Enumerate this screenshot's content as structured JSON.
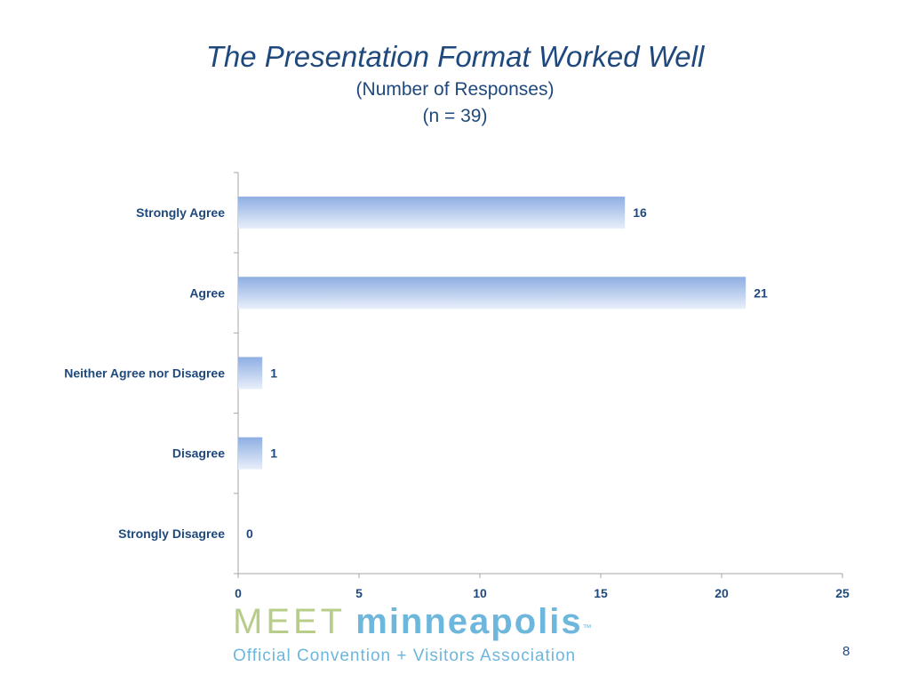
{
  "slide": {
    "page_number": "8"
  },
  "logo": {
    "word1": "MEET",
    "word2": "minneapolis",
    "trademark": "™",
    "tagline": "Official Convention + Visitors Association"
  },
  "colors": {
    "title": "#1f497d",
    "bar_dark": "#8eaee2",
    "bar_light": "#e9effa",
    "axis": "#a6a6a6"
  },
  "chart_data": {
    "type": "bar",
    "orientation": "horizontal",
    "title": "The Presentation Format Worked Well",
    "subtitle": "(Number of Responses)",
    "subtitle2": "(n = 39)",
    "categories": [
      "Strongly Agree",
      "Agree",
      "Neither Agree nor Disagree",
      "Disagree",
      "Strongly Disagree"
    ],
    "values": [
      16,
      21,
      1,
      1,
      0
    ],
    "data_labels": [
      "16",
      "21",
      "1",
      "1",
      "0"
    ],
    "xlim": [
      0,
      25
    ],
    "xticks": [
      0,
      5,
      10,
      15,
      20,
      25
    ],
    "grid": false,
    "legend": "none"
  }
}
